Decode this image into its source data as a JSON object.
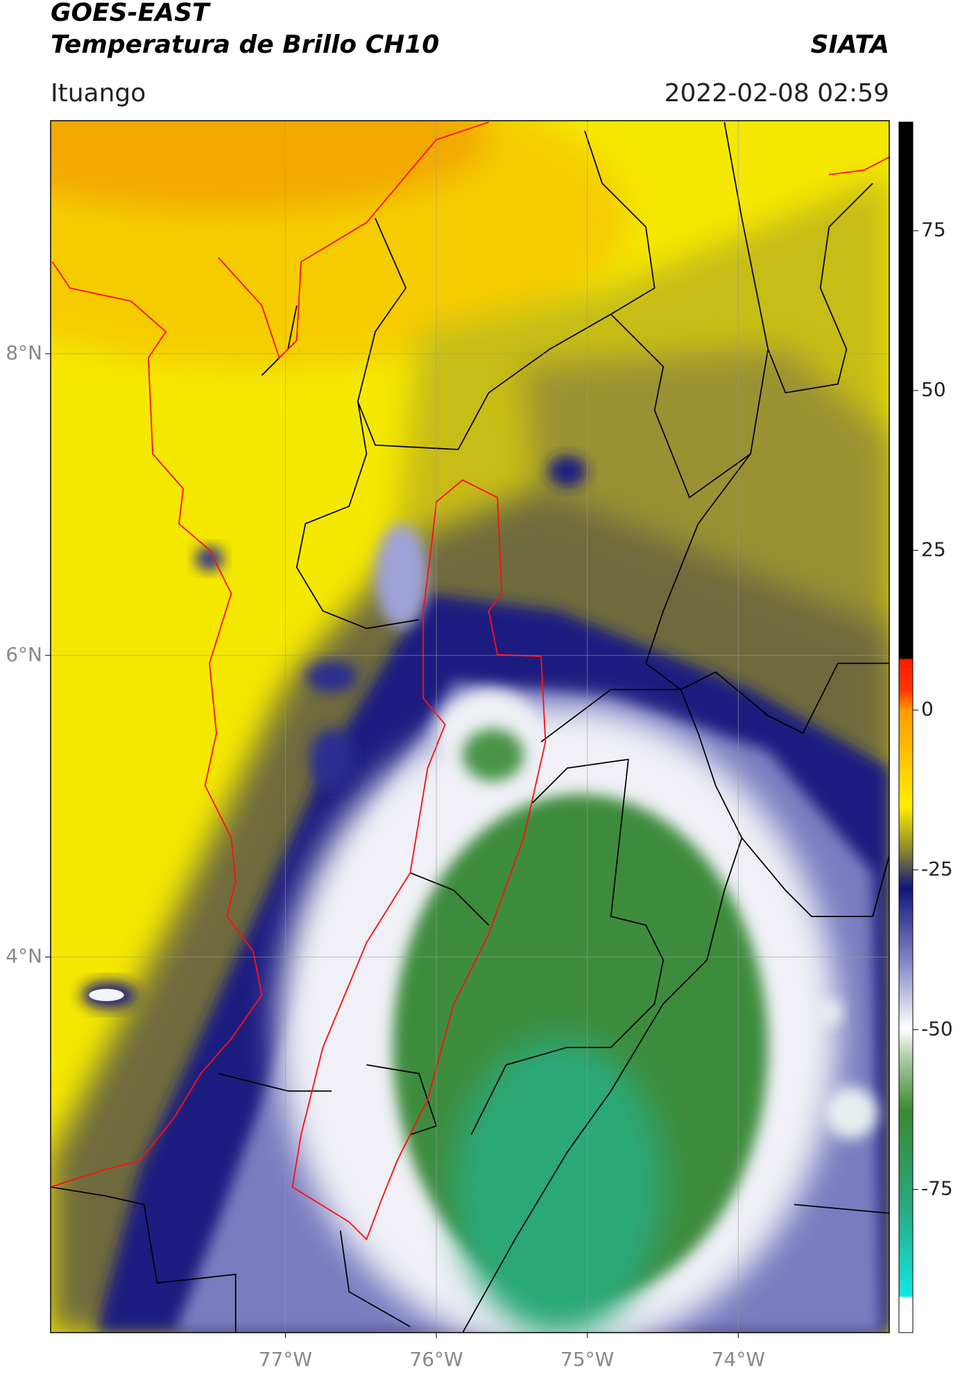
{
  "header": {
    "title": "GOES-EAST",
    "subtitle": "Temperatura de Brillo CH10",
    "source": "SIATA",
    "region": "Ituango",
    "datetime": "2022-02-08 02:59"
  },
  "map": {
    "xlim": [
      -78.555,
      -73.0
    ],
    "ylim": [
      1.51,
      9.545
    ],
    "xticks": [
      {
        "value": -77,
        "label": "77°W"
      },
      {
        "value": -76,
        "label": "76°W"
      },
      {
        "value": -75,
        "label": "75°W"
      },
      {
        "value": -74,
        "label": "74°W"
      }
    ],
    "yticks": [
      {
        "value": 4,
        "label": "4°N"
      },
      {
        "value": 6,
        "label": "6°N"
      },
      {
        "value": 8,
        "label": "8°N"
      }
    ],
    "grid": true
  },
  "colorbar": {
    "lim": [
      -97.4,
      92
    ],
    "ticks": [
      -75,
      -50,
      -25,
      0,
      25,
      50,
      75
    ]
  }
}
